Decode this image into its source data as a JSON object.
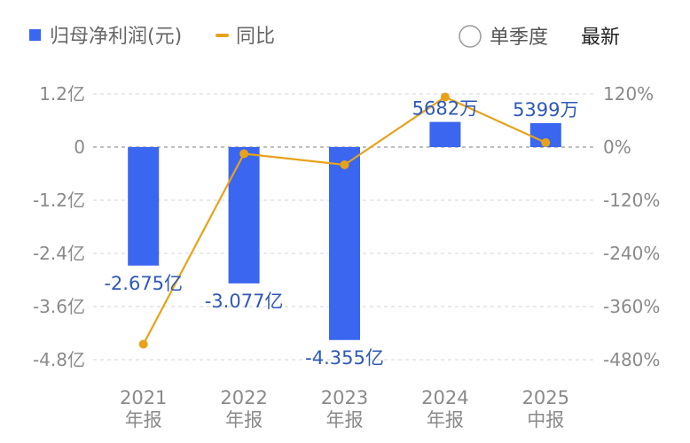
{
  "legend": {
    "bar_label": "归母净利润(元)",
    "line_label": "同比"
  },
  "controls": {
    "single_quarter_label": "单季度",
    "single_quarter_checked": false,
    "latest_label": "最新"
  },
  "colors": {
    "bar": "#3a66f0",
    "line": "#e8a21a",
    "bar_label": "#2f58b8",
    "axis_text": "#8a8a8a",
    "grid": "#d6d6d6"
  },
  "chart_data": {
    "type": "bar",
    "categories": [
      [
        "2021",
        "年报"
      ],
      [
        "2022",
        "年报"
      ],
      [
        "2023",
        "年报"
      ],
      [
        "2024",
        "年报"
      ],
      [
        "2025",
        "中报"
      ]
    ],
    "series": [
      {
        "name": "归母净利润(元)",
        "type": "bar",
        "values": [
          -267500000,
          -307700000,
          -435500000,
          56820000,
          53990000
        ],
        "labels": [
          "-2.675亿",
          "-3.077亿",
          "-4.355亿",
          "5682万",
          "5399万"
        ]
      },
      {
        "name": "同比",
        "type": "line",
        "axis": "right",
        "values": [
          -445,
          -15,
          -40,
          113,
          10
        ]
      }
    ],
    "y_left": {
      "ticks": [
        120000000,
        0,
        -120000000,
        -240000000,
        -360000000,
        -480000000
      ],
      "tick_labels": [
        "1.2亿",
        "0",
        "-1.2亿",
        "-2.4亿",
        "-3.6亿",
        "-4.8亿"
      ],
      "range": [
        -480000000,
        120000000
      ]
    },
    "y_right": {
      "ticks": [
        120,
        0,
        -120,
        -240,
        -360,
        -480
      ],
      "tick_labels": [
        "120%",
        "0%",
        "-120%",
        "-240%",
        "-360%",
        "-480%"
      ],
      "range": [
        -480,
        120
      ]
    },
    "grid": true,
    "legend_position": "top-left"
  }
}
